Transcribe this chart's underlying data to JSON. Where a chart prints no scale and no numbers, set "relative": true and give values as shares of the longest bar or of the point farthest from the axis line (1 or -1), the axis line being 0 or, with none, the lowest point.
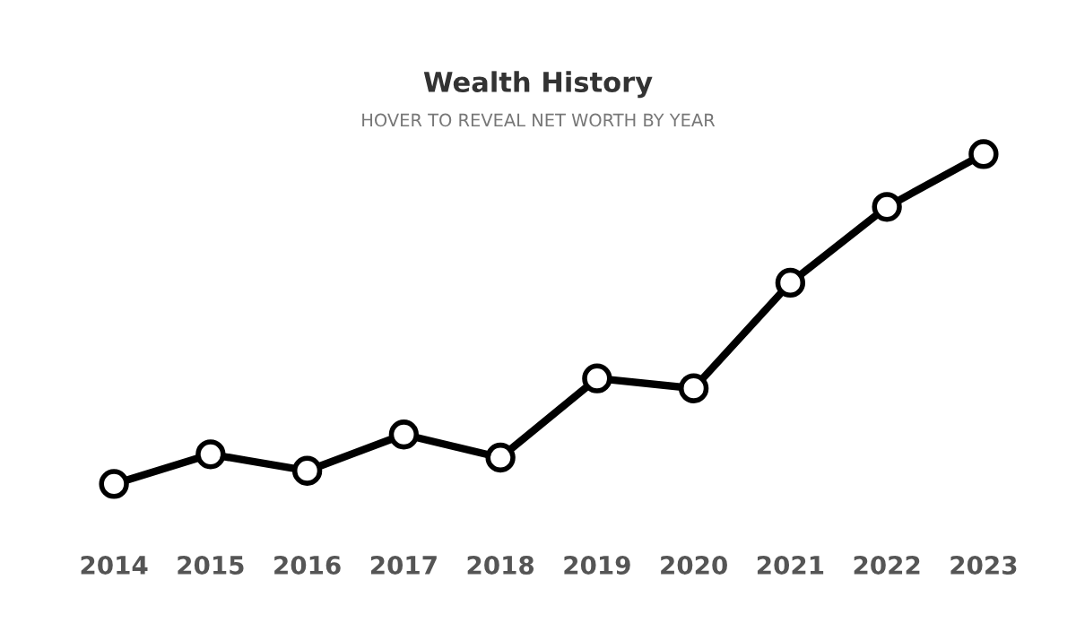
{
  "chart_data": {
    "type": "line",
    "title": "Wealth History",
    "subtitle": "HOVER TO REVEAL NET WORTH BY YEAR",
    "categories": [
      "2014",
      "2015",
      "2016",
      "2017",
      "2018",
      "2019",
      "2020",
      "2021",
      "2022",
      "2023"
    ],
    "series": [
      {
        "color": "#000000",
        "values": [
          0,
          0.09,
          0.04,
          0.15,
          0.08,
          0.32,
          0.29,
          0.61,
          0.84,
          1
        ]
      }
    ],
    "relative": true,
    "marker": "circle",
    "line_style": "solid",
    "grid": false,
    "legend": false
  }
}
